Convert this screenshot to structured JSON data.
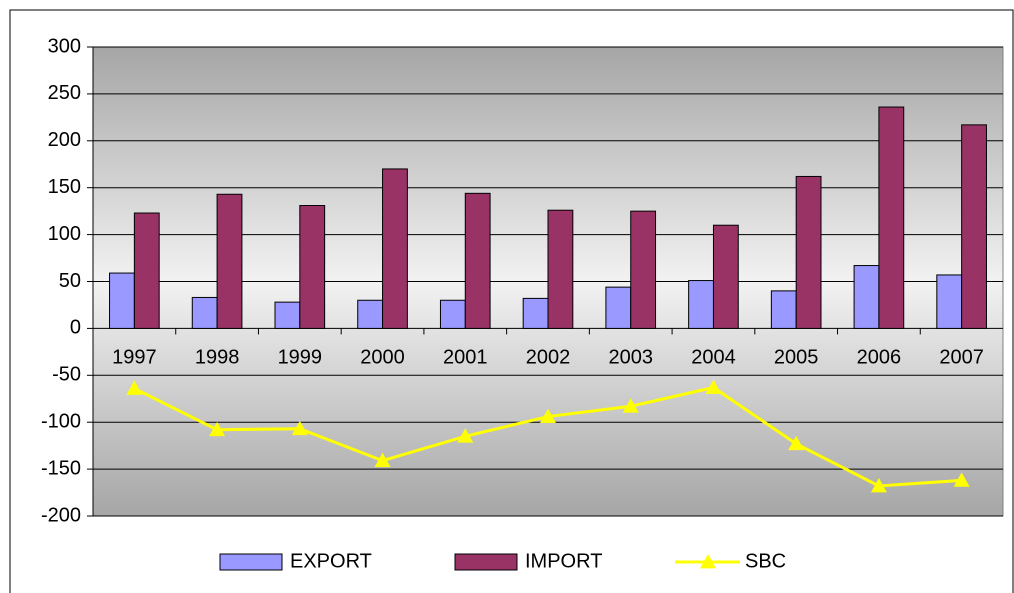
{
  "chart_data": {
    "type": "bar_line",
    "categories": [
      "1997",
      "1998",
      "1999",
      "2000",
      "2001",
      "2002",
      "2003",
      "2004",
      "2005",
      "2006",
      "2007"
    ],
    "series": [
      {
        "name": "EXPORT",
        "type": "bar",
        "color": "#9999ff",
        "values": [
          59,
          33,
          28,
          30,
          30,
          32,
          44,
          51,
          40,
          67,
          57
        ]
      },
      {
        "name": "IMPORT",
        "type": "bar",
        "color": "#993366",
        "values": [
          123,
          143,
          131,
          170,
          144,
          126,
          125,
          110,
          162,
          236,
          217
        ]
      },
      {
        "name": "SBC",
        "type": "line",
        "color": "#ffff00",
        "values": [
          -64,
          -108,
          -107,
          -141,
          -115,
          -94,
          -83,
          -63,
          -123,
          -168,
          -162
        ]
      }
    ],
    "ylim": [
      -200,
      300
    ],
    "yticks": [
      -200,
      -150,
      -100,
      -50,
      0,
      50,
      100,
      150,
      200,
      250,
      300
    ],
    "grid": true,
    "legend": "bottom"
  }
}
